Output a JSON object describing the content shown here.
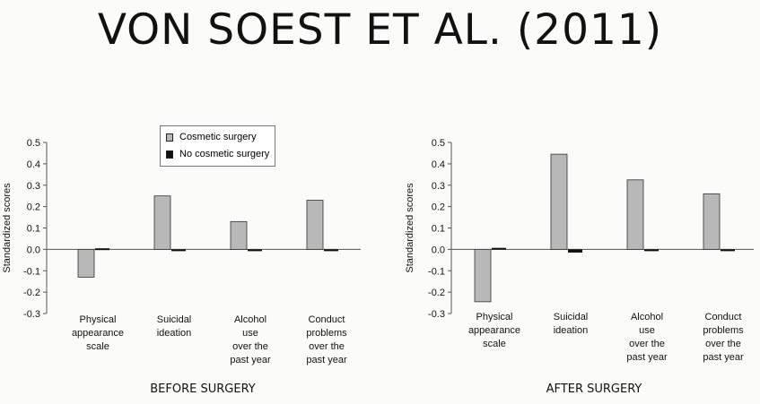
{
  "slide": {
    "title": "VON SOEST ET AL. (2011)"
  },
  "legend": {
    "items": [
      {
        "label": "Cosmetic surgery",
        "color": "#b8b8b8"
      },
      {
        "label": "No cosmetic surgery",
        "color": "#111111"
      }
    ]
  },
  "chart_data": [
    {
      "type": "bar",
      "panel_label": "BEFORE SURGERY",
      "ylabel": "Standardized scores",
      "ylim": [
        -0.3,
        0.5
      ],
      "yticks": [
        "0.5",
        "0.4",
        "0.3",
        "0.2",
        "0.1",
        "0.0",
        "-0.1",
        "-0.2",
        "-0.3"
      ],
      "categories": [
        [
          "Physical",
          "appearance",
          "scale"
        ],
        [
          "Suicidal",
          "ideation"
        ],
        [
          "Alcohol",
          "use",
          "over the",
          "past year"
        ],
        [
          "Conduct",
          "problems",
          "over the",
          "past year"
        ]
      ],
      "series": [
        {
          "name": "Cosmetic surgery",
          "values": [
            -0.13,
            0.25,
            0.13,
            0.23
          ]
        },
        {
          "name": "No cosmetic surgery",
          "values": [
            0.005,
            -0.005,
            -0.003,
            -0.005
          ]
        }
      ]
    },
    {
      "type": "bar",
      "panel_label": "AFTER SURGERY",
      "ylabel": "Standardized scores",
      "ylim": [
        -0.3,
        0.5
      ],
      "yticks": [
        "0.5",
        "0.4",
        "0.3",
        "0.2",
        "0.1",
        "0.0",
        "-0.1",
        "-0.2",
        "-0.3"
      ],
      "categories": [
        [
          "Physical",
          "appearance",
          "scale"
        ],
        [
          "Suicidal",
          "ideation"
        ],
        [
          "Alcohol",
          "use",
          "over the",
          "past year"
        ],
        [
          "Conduct",
          "problems",
          "over the",
          "past year"
        ]
      ],
      "series": [
        {
          "name": "Cosmetic surgery",
          "values": [
            -0.245,
            0.445,
            0.325,
            0.26
          ]
        },
        {
          "name": "No cosmetic surgery",
          "values": [
            0.007,
            -0.015,
            -0.008,
            -0.008
          ]
        }
      ]
    }
  ]
}
